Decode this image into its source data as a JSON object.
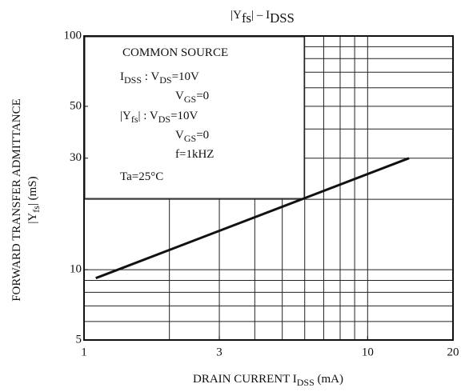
{
  "chart_data": {
    "type": "line",
    "title": [
      "|Y",
      "fs",
      "| – I",
      "DSS"
    ],
    "x_label": [
      "DRAIN CURRENT  I",
      "DSS",
      "  (mA)"
    ],
    "y_label": [
      [
        "FORWARD TRANSFER ADMITTANCE"
      ],
      [
        "|Y",
        "fs",
        "|  (mS)"
      ]
    ],
    "annotations": [
      [
        "COMMON SOURCE"
      ],
      [
        "I",
        "DSS",
        " : V",
        "DS",
        "=10V"
      ],
      [
        "V",
        "GS",
        "=0"
      ],
      [
        "|Y",
        "fs",
        "|  : V",
        "DS",
        "=10V"
      ],
      [
        "V",
        "GS",
        "=0"
      ],
      [
        "f=1kHZ"
      ],
      [
        "Ta=25°C"
      ]
    ],
    "x": [
      1.1,
      14
    ],
    "series": [
      {
        "color": "#111111",
        "values": [
          9.2,
          30
        ]
      }
    ],
    "xscale": "log",
    "yscale": "log",
    "xlim": [
      1,
      20
    ],
    "ylim": [
      5,
      100
    ],
    "xticks": [
      1,
      3,
      10,
      20
    ],
    "yticks": [
      5,
      10,
      30,
      50,
      100
    ],
    "xgrid": [
      2,
      3,
      4,
      5,
      6,
      7,
      8,
      9,
      10
    ],
    "ygrid": [
      6,
      7,
      8,
      9,
      10,
      20,
      30,
      40,
      50,
      60,
      70,
      80,
      90
    ]
  }
}
